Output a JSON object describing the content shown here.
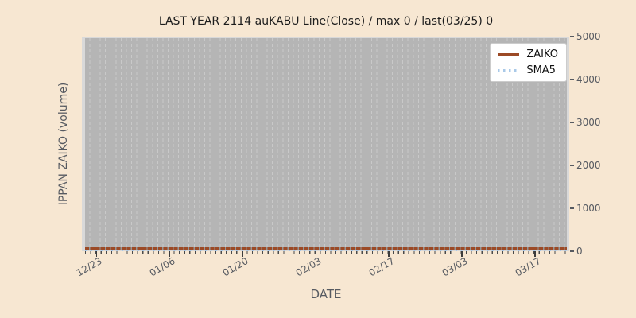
{
  "chart_data": {
    "type": "line",
    "title": "LAST YEAR 2114 auKABU Line(Close) / max 0 / last(03/25) 0",
    "xlabel": "DATE",
    "ylabel": "IPPAN ZAIKO (volume)",
    "x_tick_labels": [
      "12/23",
      "01/06",
      "01/20",
      "02/03",
      "02/17",
      "03/03",
      "03/17"
    ],
    "x_range": [
      "12/23",
      "03/25"
    ],
    "y_ticks": [
      0,
      1000,
      2000,
      3000,
      4000,
      5000
    ],
    "ylim": [
      0,
      5000
    ],
    "grid": "vertical dashed daily gridlines, no horizontal gridlines",
    "legend_position": "upper right",
    "series": [
      {
        "name": "ZAIKO",
        "style": "solid",
        "color": "#9c4a26",
        "value_constant": 0
      },
      {
        "name": "SMA5",
        "style": "dotted",
        "color": "#a9c9e8",
        "value_constant": 0
      }
    ],
    "stats": {
      "max": 0,
      "last_date": "03/25",
      "last_value": 0
    }
  },
  "colors": {
    "figure_bg": "#f7e7d2",
    "plot_bg": "#b5b5b5",
    "plot_edge": "#d9d9d9",
    "gridline": "#c9c9c9",
    "tick_label": "#565a61",
    "title_text": "#1c1c1c",
    "legend_bg": "#ffffff",
    "legend_border": "#cccccc"
  }
}
